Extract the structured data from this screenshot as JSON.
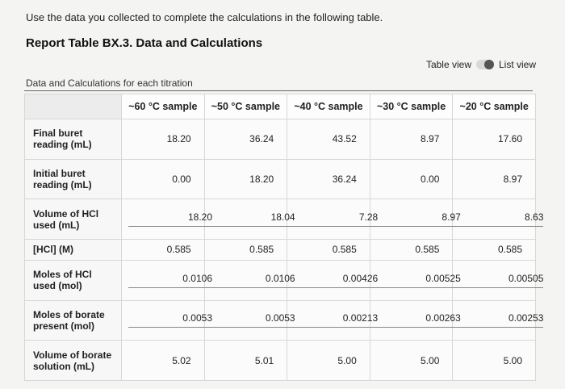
{
  "instructions": "Use the data you collected to complete the calculations in the following table.",
  "report_title": "Report Table BX.3. Data and Calculations",
  "view_toggle": {
    "table_label": "Table view",
    "list_label": "List view"
  },
  "section_caption": "Data and Calculations for each titration",
  "table": {
    "headers": [
      "~60 °C sample",
      "~50 °C sample",
      "~40 °C sample",
      "~30 °C sample",
      "~20 °C sample"
    ],
    "rows": [
      {
        "label": "Final buret reading (mL)",
        "values": [
          "18.20",
          "36.24",
          "43.52",
          "8.97",
          "17.60"
        ]
      },
      {
        "label": "Initial buret reading (mL)",
        "values": [
          "0.00",
          "18.20",
          "36.24",
          "0.00",
          "8.97"
        ]
      },
      {
        "label": "Volume of HCl used (mL)",
        "values": [
          "18.20",
          "18.04",
          "7.28",
          "8.97",
          "8.63"
        ]
      },
      {
        "label": "[HCl] (M)",
        "values": [
          "0.585",
          "0.585",
          "0.585",
          "0.585",
          "0.585"
        ]
      },
      {
        "label": "Moles of HCl used (mol)",
        "values": [
          "0.0106",
          "0.0106",
          "0.00426",
          "0.00525",
          "0.00505"
        ]
      },
      {
        "label": "Moles of borate present (mol)",
        "values": [
          "0.0053",
          "0.0053",
          "0.00213",
          "0.00263",
          "0.00253"
        ]
      },
      {
        "label": "Volume of borate solution (mL)",
        "values": [
          "5.02",
          "5.01",
          "5.00",
          "5.00",
          "5.00"
        ]
      }
    ]
  }
}
